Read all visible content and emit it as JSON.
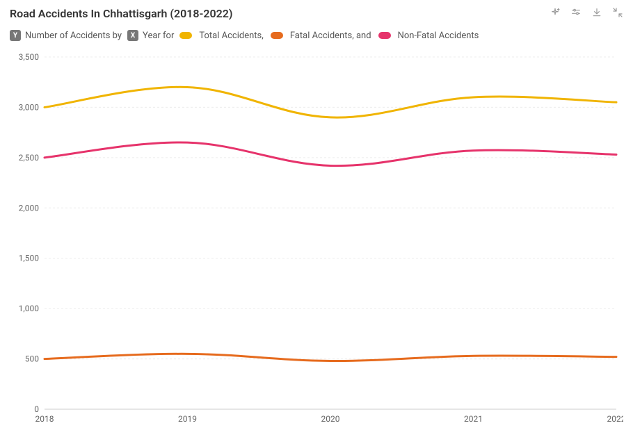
{
  "title": "Road Accidents In Chhattisgarh (2018-2022)",
  "legend": {
    "y_badge": "Y",
    "y_text": "Number of Accidents by",
    "x_badge": "X",
    "x_text": "Year for",
    "series": [
      {
        "label": "Total Accidents,",
        "color": "#f0b400"
      },
      {
        "label": "Fatal Accidents, and",
        "color": "#e66b1e"
      },
      {
        "label": "Non-Fatal Accidents",
        "color": "#e6336b"
      }
    ]
  },
  "chart": {
    "type": "line",
    "background_color": "#ffffff",
    "grid_color": "#ececec",
    "baseline_color": "#cccccc",
    "line_width": 3,
    "curve": "catmull-rom",
    "x": {
      "field": "Year",
      "ticks": [
        2018,
        2019,
        2020,
        2021,
        2022
      ],
      "lim": [
        2018,
        2022
      ],
      "label_fontsize": 12,
      "label_color": "#666666"
    },
    "y": {
      "field": "Number of Accidents",
      "ticks": [
        0,
        500,
        1000,
        1500,
        2000,
        2500,
        3000,
        3500
      ],
      "tick_labels": [
        "0",
        "500",
        "1,000",
        "1,500",
        "2,000",
        "2,500",
        "3,000",
        "3,500"
      ],
      "lim": [
        0,
        3500
      ],
      "label_fontsize": 12,
      "label_color": "#666666"
    },
    "series": [
      {
        "name": "Total Accidents",
        "color": "#f0b400",
        "x": [
          2018,
          2019,
          2020,
          2021,
          2022
        ],
        "y": [
          3000,
          3200,
          2900,
          3100,
          3050
        ]
      },
      {
        "name": "Fatal Accidents",
        "color": "#e66b1e",
        "x": [
          2018,
          2019,
          2020,
          2021,
          2022
        ],
        "y": [
          500,
          550,
          480,
          530,
          520
        ]
      },
      {
        "name": "Non-Fatal Accidents",
        "color": "#e6336b",
        "x": [
          2018,
          2019,
          2020,
          2021,
          2022
        ],
        "y": [
          2500,
          2650,
          2420,
          2570,
          2530
        ]
      }
    ]
  },
  "typography": {
    "title_fontsize": 16,
    "title_weight": 600,
    "legend_fontsize": 13,
    "tick_fontsize": 12
  }
}
